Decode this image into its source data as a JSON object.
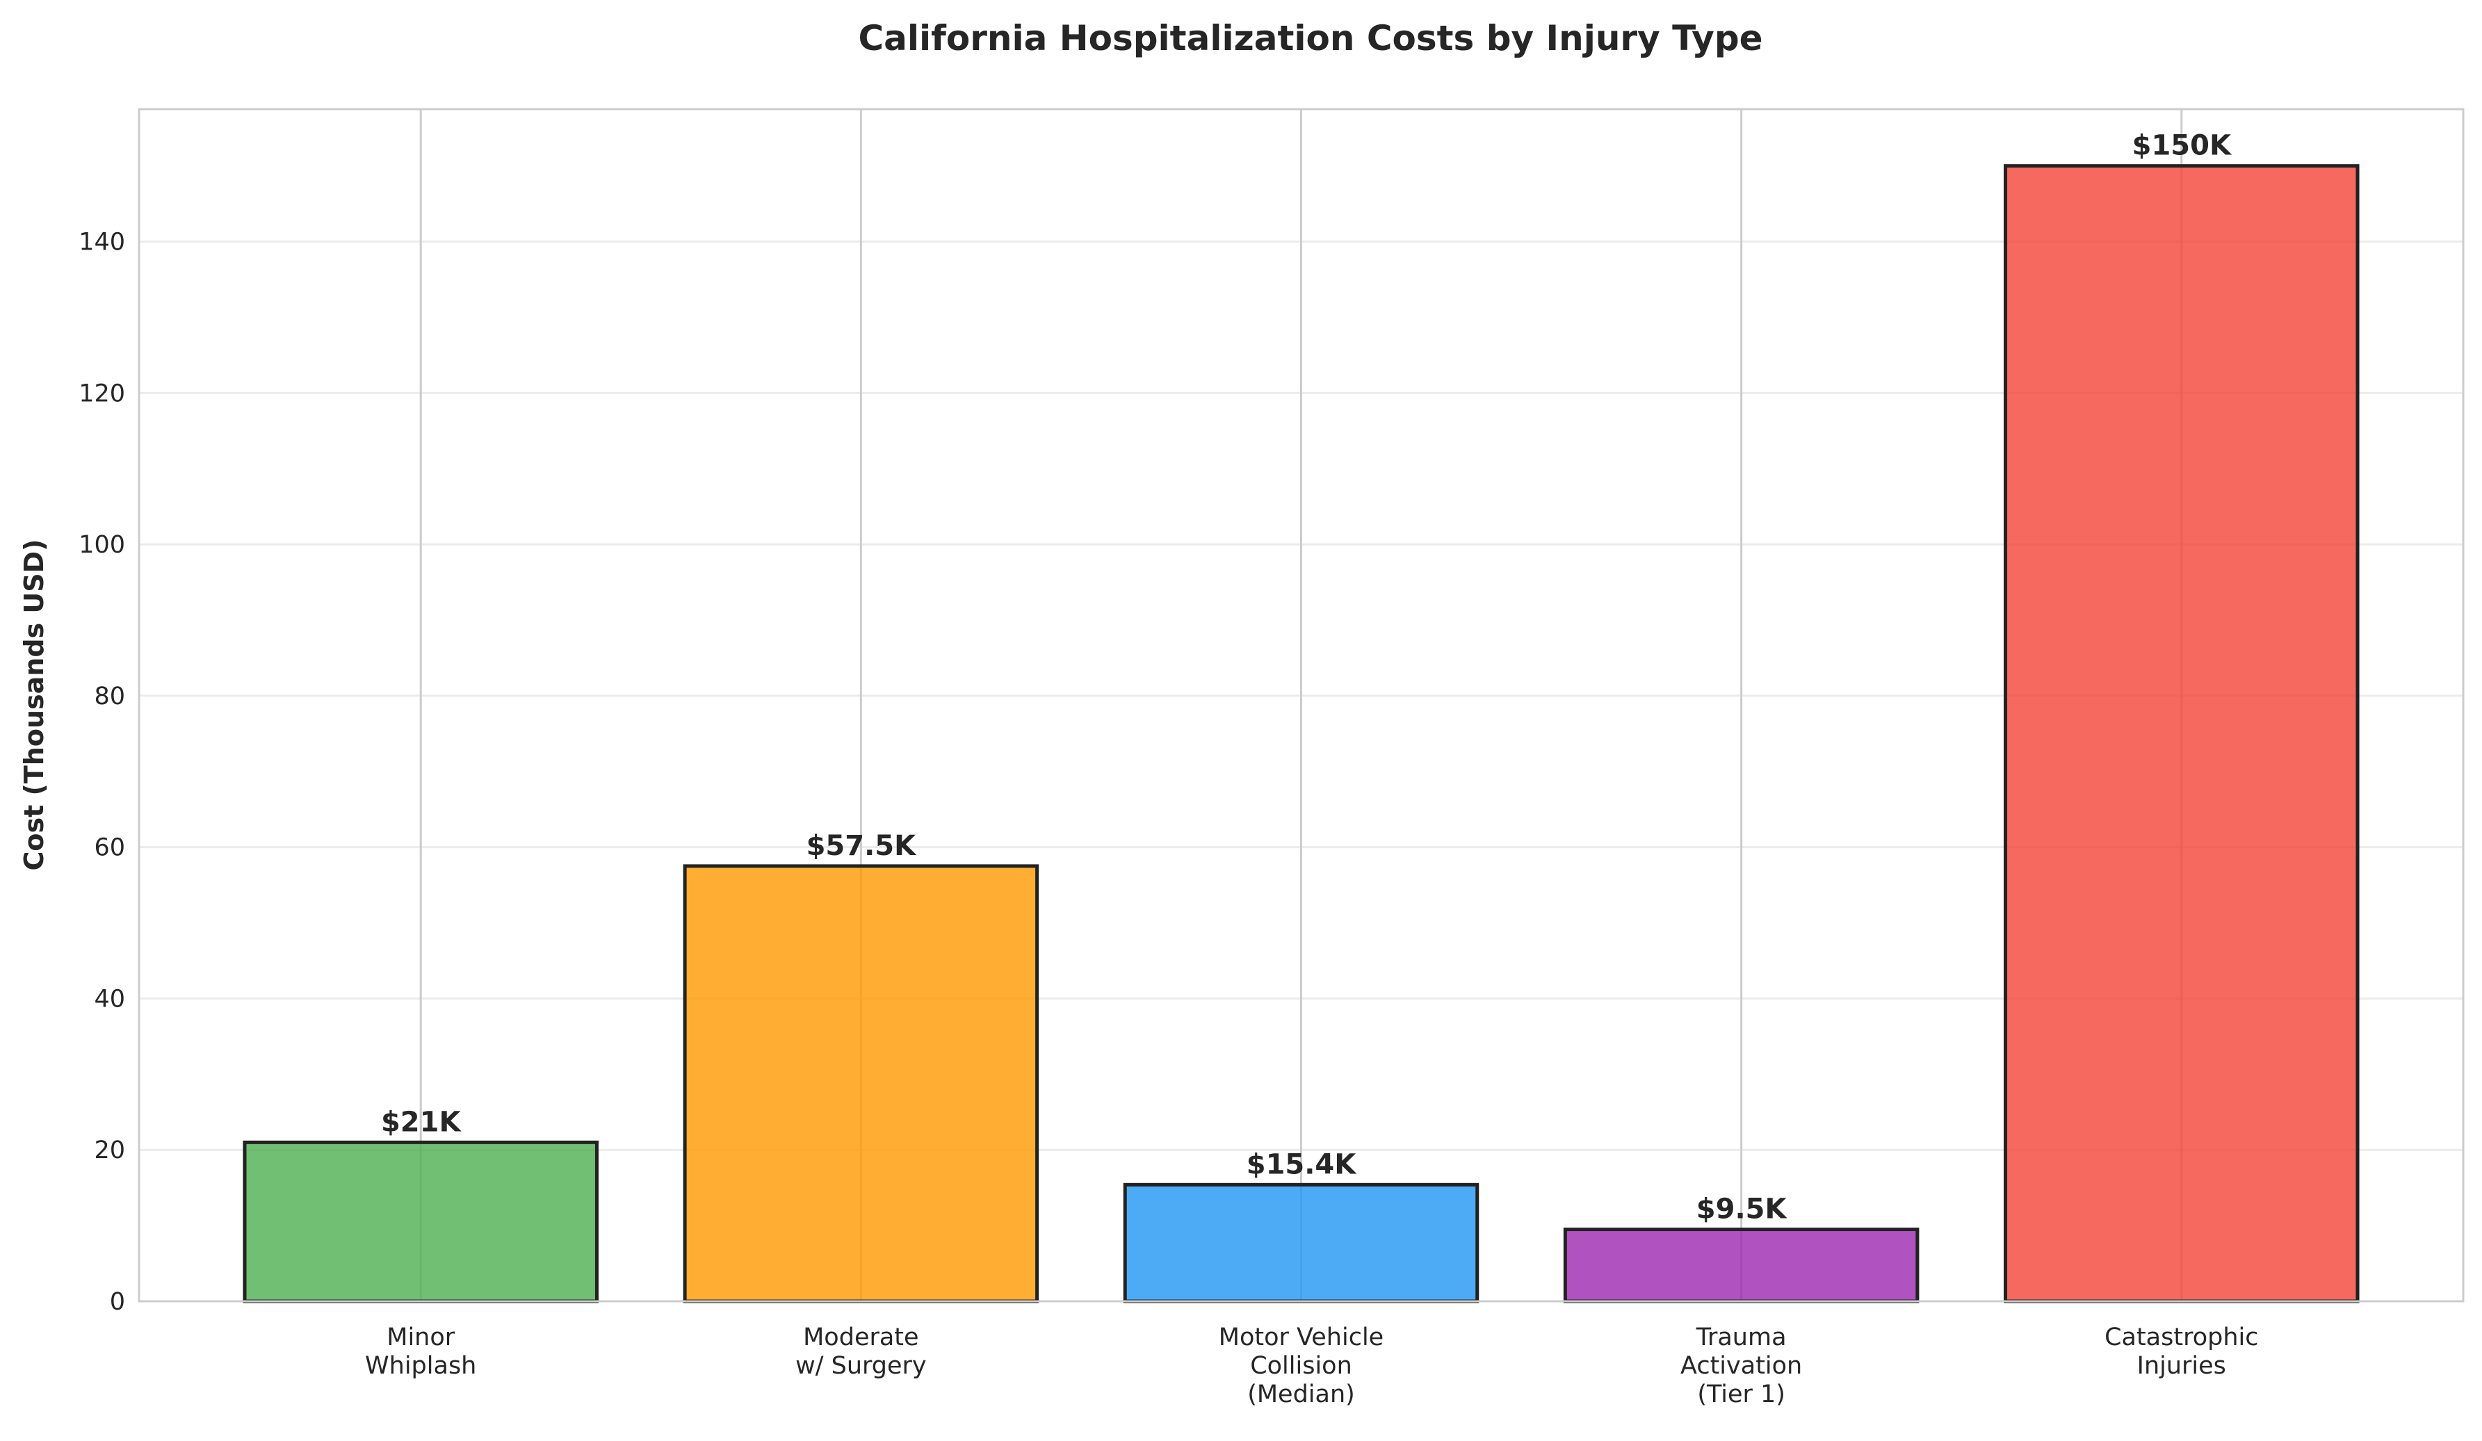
{
  "chart_data": {
    "type": "bar",
    "title": "California Hospitalization Costs by Injury Type",
    "xlabel": "",
    "ylabel": "Cost (Thousands USD)",
    "categories": [
      [
        "Minor",
        "Whiplash"
      ],
      [
        "Moderate",
        "w/ Surgery"
      ],
      [
        "Motor Vehicle",
        "Collision",
        "(Median)"
      ],
      [
        "Trauma",
        "Activation",
        "(Tier 1)"
      ],
      [
        "Catastrophic",
        "Injuries"
      ]
    ],
    "values": [
      21,
      57.5,
      15.4,
      9.5,
      150
    ],
    "data_labels": [
      "$21K",
      "$57.5K",
      "$15.4K",
      "$9.5K",
      "$150K"
    ],
    "colors": [
      "#4CAF50",
      "#FF9800",
      "#2196F3",
      "#9C27B0",
      "#F44336"
    ],
    "edge_color": "#222222",
    "ylim": [
      0,
      157.5
    ],
    "yticks": [
      0,
      20,
      40,
      60,
      80,
      100,
      120,
      140
    ],
    "grid": true,
    "legend": "none"
  }
}
